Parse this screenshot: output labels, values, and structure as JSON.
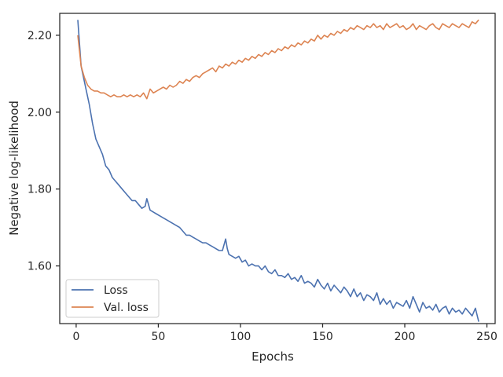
{
  "chart_data": {
    "type": "line",
    "title": "",
    "xlabel": "Epochs",
    "ylabel": "Negative log-likelihood",
    "xlim": [
      -10,
      255
    ],
    "ylim": [
      1.45,
      2.257
    ],
    "xticks": [
      0,
      50,
      100,
      150,
      200,
      250
    ],
    "yticks": [
      1.6,
      1.8,
      2.0,
      2.2
    ],
    "xtick_labels": [
      "0",
      "50",
      "100",
      "150",
      "200",
      "250"
    ],
    "ytick_labels": [
      "1.60",
      "1.80",
      "2.00",
      "2.20"
    ],
    "grid": false,
    "legend_position": "lower-left",
    "series": [
      {
        "name": "Loss",
        "color": "#4c72b0",
        "x": [
          1,
          3,
          6,
          8,
          10,
          12,
          14,
          16,
          18,
          20,
          22,
          24,
          26,
          28,
          30,
          32,
          34,
          36,
          38,
          40,
          42,
          43,
          45,
          47,
          49,
          51,
          53,
          55,
          57,
          59,
          61,
          63,
          65,
          67,
          69,
          71,
          73,
          75,
          77,
          79,
          81,
          83,
          85,
          87,
          89,
          91,
          92,
          93,
          95,
          97,
          99,
          101,
          103,
          105,
          107,
          109,
          111,
          113,
          115,
          117,
          119,
          121,
          123,
          125,
          127,
          129,
          131,
          133,
          135,
          137,
          139,
          141,
          143,
          145,
          147,
          149,
          151,
          153,
          155,
          157,
          159,
          161,
          163,
          165,
          167,
          169,
          171,
          173,
          175,
          177,
          179,
          181,
          183,
          185,
          187,
          189,
          191,
          193,
          195,
          197,
          199,
          201,
          203,
          205,
          207,
          209,
          211,
          213,
          215,
          217,
          219,
          221,
          223,
          225,
          227,
          229,
          231,
          233,
          235,
          237,
          239,
          241,
          243,
          245
        ],
        "y": [
          2.24,
          2.12,
          2.06,
          2.02,
          1.97,
          1.93,
          1.91,
          1.89,
          1.86,
          1.85,
          1.83,
          1.82,
          1.81,
          1.8,
          1.79,
          1.78,
          1.77,
          1.77,
          1.76,
          1.75,
          1.755,
          1.775,
          1.745,
          1.74,
          1.735,
          1.73,
          1.725,
          1.72,
          1.715,
          1.71,
          1.705,
          1.7,
          1.69,
          1.68,
          1.68,
          1.675,
          1.67,
          1.665,
          1.66,
          1.66,
          1.655,
          1.65,
          1.645,
          1.64,
          1.64,
          1.67,
          1.645,
          1.63,
          1.625,
          1.62,
          1.625,
          1.61,
          1.615,
          1.6,
          1.605,
          1.6,
          1.6,
          1.59,
          1.6,
          1.585,
          1.58,
          1.59,
          1.575,
          1.575,
          1.57,
          1.58,
          1.565,
          1.57,
          1.56,
          1.575,
          1.555,
          1.56,
          1.555,
          1.545,
          1.565,
          1.55,
          1.54,
          1.555,
          1.535,
          1.55,
          1.54,
          1.53,
          1.545,
          1.535,
          1.52,
          1.54,
          1.52,
          1.53,
          1.51,
          1.525,
          1.52,
          1.51,
          1.53,
          1.5,
          1.515,
          1.5,
          1.51,
          1.49,
          1.505,
          1.5,
          1.495,
          1.51,
          1.49,
          1.52,
          1.5,
          1.48,
          1.505,
          1.49,
          1.495,
          1.485,
          1.5,
          1.48,
          1.49,
          1.495,
          1.475,
          1.49,
          1.48,
          1.485,
          1.475,
          1.49,
          1.48,
          1.47,
          1.49,
          1.455
        ]
      },
      {
        "name": "Val. loss",
        "color": "#dd8452",
        "x": [
          1,
          3,
          5,
          7,
          9,
          11,
          13,
          15,
          17,
          19,
          21,
          23,
          25,
          27,
          29,
          31,
          33,
          35,
          37,
          39,
          41,
          43,
          45,
          47,
          49,
          51,
          53,
          55,
          57,
          59,
          61,
          63,
          65,
          67,
          69,
          71,
          73,
          75,
          77,
          79,
          81,
          83,
          85,
          87,
          89,
          91,
          93,
          95,
          97,
          99,
          101,
          103,
          105,
          107,
          109,
          111,
          113,
          115,
          117,
          119,
          121,
          123,
          125,
          127,
          129,
          131,
          133,
          135,
          137,
          139,
          141,
          143,
          145,
          147,
          149,
          151,
          153,
          155,
          157,
          159,
          161,
          163,
          165,
          167,
          169,
          171,
          173,
          175,
          177,
          179,
          181,
          183,
          185,
          187,
          189,
          191,
          193,
          195,
          197,
          199,
          201,
          203,
          205,
          207,
          209,
          211,
          213,
          215,
          217,
          219,
          221,
          223,
          225,
          227,
          229,
          231,
          233,
          235,
          237,
          239,
          241,
          243,
          245
        ],
        "y": [
          2.2,
          2.12,
          2.09,
          2.07,
          2.06,
          2.055,
          2.055,
          2.05,
          2.05,
          2.045,
          2.04,
          2.045,
          2.04,
          2.04,
          2.045,
          2.04,
          2.045,
          2.04,
          2.045,
          2.04,
          2.05,
          2.035,
          2.06,
          2.05,
          2.055,
          2.06,
          2.065,
          2.06,
          2.07,
          2.065,
          2.07,
          2.08,
          2.075,
          2.085,
          2.08,
          2.09,
          2.095,
          2.09,
          2.1,
          2.105,
          2.11,
          2.115,
          2.105,
          2.12,
          2.115,
          2.125,
          2.12,
          2.13,
          2.125,
          2.135,
          2.13,
          2.14,
          2.135,
          2.145,
          2.14,
          2.15,
          2.145,
          2.155,
          2.15,
          2.16,
          2.155,
          2.165,
          2.16,
          2.17,
          2.165,
          2.175,
          2.17,
          2.18,
          2.175,
          2.185,
          2.18,
          2.19,
          2.185,
          2.2,
          2.19,
          2.2,
          2.195,
          2.205,
          2.2,
          2.21,
          2.205,
          2.215,
          2.21,
          2.22,
          2.215,
          2.225,
          2.22,
          2.215,
          2.225,
          2.22,
          2.23,
          2.22,
          2.225,
          2.215,
          2.23,
          2.22,
          2.225,
          2.23,
          2.22,
          2.225,
          2.215,
          2.22,
          2.23,
          2.215,
          2.225,
          2.22,
          2.215,
          2.225,
          2.23,
          2.22,
          2.215,
          2.23,
          2.225,
          2.22,
          2.23,
          2.225,
          2.22,
          2.23,
          2.225,
          2.22,
          2.235,
          2.23,
          2.24
        ]
      }
    ]
  }
}
